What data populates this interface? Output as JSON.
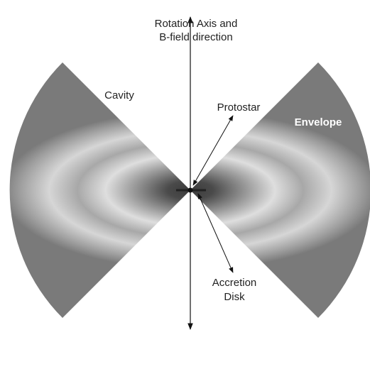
{
  "axis_label": [
    "Rotation Axis and",
    "B-field direction"
  ],
  "labels": {
    "cavity": "Cavity",
    "protostar": "Protostar",
    "envelope": "Envelope",
    "accretion_disk": [
      "Accretion",
      "Disk"
    ]
  }
}
